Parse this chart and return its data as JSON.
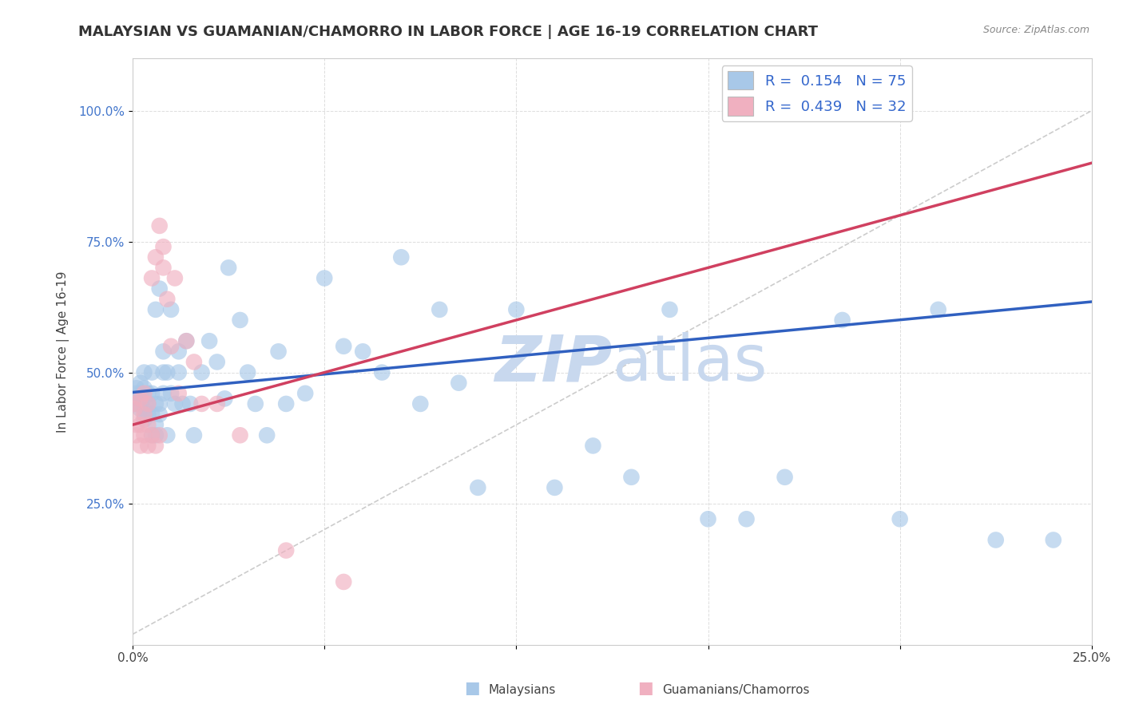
{
  "title": "MALAYSIAN VS GUAMANIAN/CHAMORRO IN LABOR FORCE | AGE 16-19 CORRELATION CHART",
  "source_text": "Source: ZipAtlas.com",
  "ylabel": "In Labor Force | Age 16-19",
  "xlim": [
    0.0,
    0.25
  ],
  "ylim": [
    -0.02,
    1.1
  ],
  "xticks": [
    0.0,
    0.05,
    0.1,
    0.15,
    0.2,
    0.25
  ],
  "yticks": [
    0.25,
    0.5,
    0.75,
    1.0
  ],
  "xticklabels": [
    "0.0%",
    "",
    "",
    "",
    "",
    "25.0%"
  ],
  "yticklabels": [
    "25.0%",
    "50.0%",
    "75.0%",
    "100.0%"
  ],
  "legend_labels": [
    "Malaysians",
    "Guamanians/Chamorros"
  ],
  "legend_r": [
    "R =  0.154",
    "R =  0.439"
  ],
  "legend_n": [
    "N = 75",
    "N = 32"
  ],
  "blue_color": "#a8c8e8",
  "pink_color": "#f0b0c0",
  "blue_line_color": "#3060c0",
  "pink_line_color": "#d04060",
  "ref_line_color": "#cccccc",
  "watermark_color": "#c8d8ee",
  "background_color": "#ffffff",
  "title_fontsize": 13,
  "axis_label_fontsize": 11,
  "tick_fontsize": 11,
  "blue_scatter_x": [
    0.0005,
    0.001,
    0.001,
    0.0015,
    0.002,
    0.002,
    0.002,
    0.002,
    0.003,
    0.003,
    0.003,
    0.003,
    0.003,
    0.004,
    0.004,
    0.004,
    0.005,
    0.005,
    0.005,
    0.005,
    0.006,
    0.006,
    0.006,
    0.006,
    0.007,
    0.007,
    0.007,
    0.008,
    0.008,
    0.008,
    0.009,
    0.009,
    0.01,
    0.01,
    0.011,
    0.012,
    0.012,
    0.013,
    0.014,
    0.015,
    0.016,
    0.018,
    0.02,
    0.022,
    0.024,
    0.025,
    0.028,
    0.03,
    0.032,
    0.035,
    0.038,
    0.04,
    0.045,
    0.05,
    0.055,
    0.06,
    0.065,
    0.07,
    0.075,
    0.08,
    0.085,
    0.09,
    0.1,
    0.11,
    0.12,
    0.13,
    0.14,
    0.15,
    0.16,
    0.17,
    0.185,
    0.2,
    0.21,
    0.225,
    0.24
  ],
  "blue_scatter_y": [
    0.44,
    0.46,
    0.47,
    0.45,
    0.43,
    0.44,
    0.46,
    0.48,
    0.41,
    0.43,
    0.45,
    0.47,
    0.5,
    0.42,
    0.44,
    0.46,
    0.38,
    0.42,
    0.46,
    0.5,
    0.38,
    0.4,
    0.44,
    0.62,
    0.42,
    0.44,
    0.66,
    0.46,
    0.5,
    0.54,
    0.38,
    0.5,
    0.46,
    0.62,
    0.44,
    0.5,
    0.54,
    0.44,
    0.56,
    0.44,
    0.38,
    0.5,
    0.56,
    0.52,
    0.45,
    0.7,
    0.6,
    0.5,
    0.44,
    0.38,
    0.54,
    0.44,
    0.46,
    0.68,
    0.55,
    0.54,
    0.5,
    0.72,
    0.44,
    0.62,
    0.48,
    0.28,
    0.62,
    0.28,
    0.36,
    0.3,
    0.62,
    0.22,
    0.22,
    0.3,
    0.6,
    0.22,
    0.62,
    0.18,
    0.18
  ],
  "pink_scatter_x": [
    0.0003,
    0.0005,
    0.001,
    0.001,
    0.002,
    0.002,
    0.002,
    0.003,
    0.003,
    0.003,
    0.004,
    0.004,
    0.004,
    0.005,
    0.005,
    0.006,
    0.006,
    0.007,
    0.007,
    0.008,
    0.008,
    0.009,
    0.01,
    0.011,
    0.012,
    0.014,
    0.016,
    0.018,
    0.022,
    0.028,
    0.04,
    0.055
  ],
  "pink_scatter_y": [
    0.44,
    0.43,
    0.38,
    0.4,
    0.36,
    0.4,
    0.45,
    0.38,
    0.42,
    0.46,
    0.36,
    0.4,
    0.44,
    0.38,
    0.68,
    0.36,
    0.72,
    0.38,
    0.78,
    0.7,
    0.74,
    0.64,
    0.55,
    0.68,
    0.46,
    0.56,
    0.52,
    0.44,
    0.44,
    0.38,
    0.16,
    0.1
  ],
  "blue_line_x": [
    0.0,
    0.25
  ],
  "blue_line_y": [
    0.462,
    0.635
  ],
  "pink_line_x": [
    0.0,
    0.25
  ],
  "pink_line_y": [
    0.4,
    0.9
  ]
}
